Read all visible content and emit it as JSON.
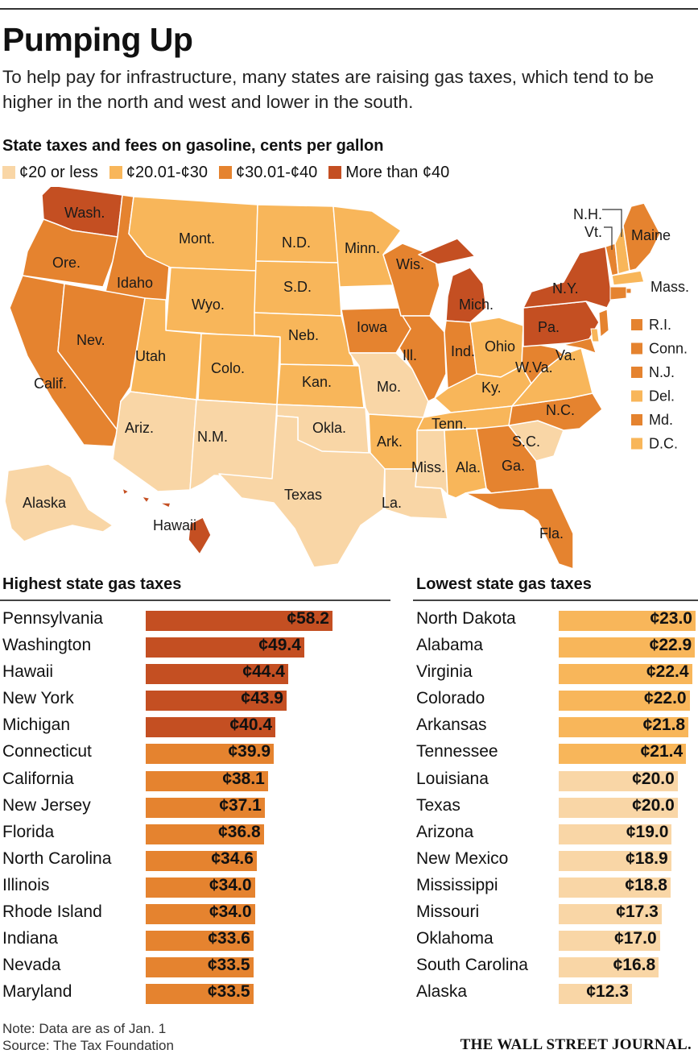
{
  "header": {
    "title": "Pumping Up",
    "subtitle": "To help pay for infrastructure, many states are raising gas taxes, which tend to be higher in the north and west and lower in the south."
  },
  "map": {
    "heading": "State taxes and fees on gasoline, cents per gallon",
    "legend": [
      {
        "label": "¢20 or less",
        "color": "#f9d6a6"
      },
      {
        "label": "¢20.01-¢30",
        "color": "#f8b65a"
      },
      {
        "label": "¢30.01-¢40",
        "color": "#e5832f"
      },
      {
        "label": "More than ¢40",
        "color": "#c44f22"
      }
    ],
    "states": [
      {
        "label": "Wash.",
        "tier": 3
      },
      {
        "label": "Ore.",
        "tier": 2
      },
      {
        "label": "Calif.",
        "tier": 2
      },
      {
        "label": "Idaho",
        "tier": 2
      },
      {
        "label": "Nev.",
        "tier": 2
      },
      {
        "label": "Mont.",
        "tier": 1
      },
      {
        "label": "Wyo.",
        "tier": 1
      },
      {
        "label": "Utah",
        "tier": 1
      },
      {
        "label": "Colo.",
        "tier": 1
      },
      {
        "label": "Ariz.",
        "tier": 0
      },
      {
        "label": "N.M.",
        "tier": 0
      },
      {
        "label": "N.D.",
        "tier": 1
      },
      {
        "label": "S.D.",
        "tier": 1
      },
      {
        "label": "Neb.",
        "tier": 1
      },
      {
        "label": "Kan.",
        "tier": 1
      },
      {
        "label": "Okla.",
        "tier": 0
      },
      {
        "label": "Texas",
        "tier": 0
      },
      {
        "label": "Minn.",
        "tier": 1
      },
      {
        "label": "Iowa",
        "tier": 2
      },
      {
        "label": "Mo.",
        "tier": 0
      },
      {
        "label": "Ark.",
        "tier": 1
      },
      {
        "label": "La.",
        "tier": 0
      },
      {
        "label": "Wis.",
        "tier": 2
      },
      {
        "label": "Ill.",
        "tier": 2
      },
      {
        "label": "Mich.",
        "tier": 3
      },
      {
        "label": "Ind.",
        "tier": 2
      },
      {
        "label": "Ohio",
        "tier": 1
      },
      {
        "label": "Ky.",
        "tier": 1
      },
      {
        "label": "Tenn.",
        "tier": 1
      },
      {
        "label": "Miss.",
        "tier": 0
      },
      {
        "label": "Ala.",
        "tier": 1
      },
      {
        "label": "Ga.",
        "tier": 2
      },
      {
        "label": "Fla.",
        "tier": 2
      },
      {
        "label": "S.C.",
        "tier": 0
      },
      {
        "label": "N.C.",
        "tier": 2
      },
      {
        "label": "Va.",
        "tier": 1
      },
      {
        "label": "W.Va.",
        "tier": 2
      },
      {
        "label": "Pa.",
        "tier": 3
      },
      {
        "label": "N.Y.",
        "tier": 3
      },
      {
        "label": "Vt.",
        "tier": 2
      },
      {
        "label": "N.H.",
        "tier": 1
      },
      {
        "label": "Maine",
        "tier": 2
      },
      {
        "label": "Mass.",
        "tier": 1
      },
      {
        "label": "Alaska",
        "tier": 0
      },
      {
        "label": "Hawaii",
        "tier": 3
      }
    ],
    "small_states": [
      {
        "label": "R.I.",
        "tier": 2
      },
      {
        "label": "Conn.",
        "tier": 2
      },
      {
        "label": "N.J.",
        "tier": 2
      },
      {
        "label": "Del.",
        "tier": 1
      },
      {
        "label": "Md.",
        "tier": 2
      },
      {
        "label": "D.C.",
        "tier": 1
      }
    ]
  },
  "chart_data": [
    {
      "type": "bar",
      "orientation": "horizontal",
      "title": "Highest state gas taxes",
      "unit": "¢",
      "categories": [
        "Pennsylvania",
        "Washington",
        "Hawaii",
        "New York",
        "Michigan",
        "Connecticut",
        "California",
        "New Jersey",
        "Florida",
        "North Carolina",
        "Illinois",
        "Rhode Island",
        "Indiana",
        "Nevada",
        "Maryland"
      ],
      "values": [
        58.2,
        49.4,
        44.4,
        43.9,
        40.4,
        39.9,
        38.1,
        37.1,
        36.8,
        34.6,
        34.0,
        34.0,
        33.6,
        33.5,
        33.5
      ],
      "labels": [
        "¢58.2",
        "¢49.4",
        "¢44.4",
        "¢43.9",
        "¢40.4",
        "¢39.9",
        "¢38.1",
        "¢37.1",
        "¢36.8",
        "¢34.6",
        "¢34.0",
        "¢34.0",
        "¢33.6",
        "¢33.5",
        "¢33.5"
      ],
      "xlim": [
        0,
        58.2
      ]
    },
    {
      "type": "bar",
      "orientation": "horizontal",
      "title": "Lowest state gas taxes",
      "unit": "¢",
      "categories": [
        "North Dakota",
        "Alabama",
        "Virginia",
        "Colorado",
        "Arkansas",
        "Tennessee",
        "Louisiana",
        "Texas",
        "Arizona",
        "New Mexico",
        "Mississippi",
        "Missouri",
        "Oklahoma",
        "South Carolina",
        "Alaska"
      ],
      "values": [
        23.0,
        22.9,
        22.4,
        22.0,
        21.8,
        21.4,
        20.0,
        20.0,
        19.0,
        18.9,
        18.8,
        17.3,
        17.0,
        16.8,
        12.3
      ],
      "labels": [
        "¢23.0",
        "¢22.9",
        "¢22.4",
        "¢22.0",
        "¢21.8",
        "¢21.4",
        "¢20.0",
        "¢20.0",
        "¢19.0",
        "¢18.9",
        "¢18.8",
        "¢17.3",
        "¢17.0",
        "¢16.8",
        "¢12.3"
      ],
      "xlim": [
        0,
        23.0
      ]
    }
  ],
  "footer": {
    "note": "Note: Data are as of Jan. 1",
    "source": "Source: The Tax Foundation",
    "publisher": "THE WALL STREET JOURNAL."
  }
}
